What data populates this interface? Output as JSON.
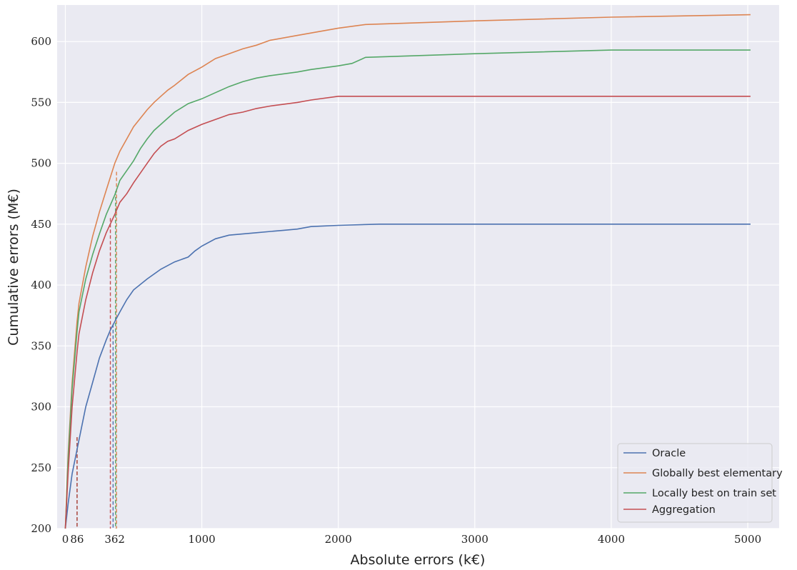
{
  "chart_data": {
    "type": "line",
    "title": "",
    "xlabel": "Absolute errors (k€)",
    "ylabel": "Cumulative errors (M€)",
    "xlim": [
      -60,
      5230
    ],
    "ylim": [
      200,
      630
    ],
    "x_ticks": [
      0,
      86,
      362,
      1000,
      2000,
      3000,
      4000,
      5000
    ],
    "y_ticks": [
      200,
      250,
      300,
      350,
      400,
      450,
      500,
      550,
      600
    ],
    "grid": true,
    "legend": "bottom-right",
    "series": [
      {
        "name": "Oracle",
        "color": "#4c72b0",
        "x": [
          0,
          20,
          50,
          86,
          150,
          200,
          250,
          300,
          330,
          362,
          400,
          450,
          500,
          600,
          700,
          800,
          900,
          950,
          1000,
          1100,
          1200,
          1400,
          1600,
          1700,
          1800,
          2000,
          2300,
          3000,
          4000,
          5020
        ],
        "y": [
          200,
          220,
          245,
          265,
          300,
          320,
          340,
          355,
          363,
          370,
          378,
          388,
          396,
          405,
          413,
          419,
          423,
          428,
          432,
          438,
          441,
          443,
          445,
          446,
          448,
          449,
          450,
          450,
          450,
          450
        ],
        "marker_x": 350,
        "marker_y": 368
      },
      {
        "name": "Globally best elementary",
        "color": "#dd8452",
        "x": [
          0,
          20,
          50,
          86,
          100,
          150,
          200,
          250,
          300,
          362,
          400,
          450,
          500,
          550,
          600,
          650,
          700,
          750,
          800,
          900,
          1000,
          1100,
          1200,
          1300,
          1400,
          1500,
          1700,
          1800,
          2000,
          2200,
          3000,
          4000,
          5020
        ],
        "y": [
          200,
          260,
          320,
          370,
          385,
          415,
          440,
          460,
          478,
          500,
          510,
          520,
          530,
          537,
          544,
          550,
          555,
          560,
          564,
          573,
          579,
          586,
          590,
          594,
          597,
          601,
          605,
          607,
          611,
          614,
          617,
          620,
          622
        ],
        "marker_x": 375,
        "marker_y": 493
      },
      {
        "name": "Locally best on train set",
        "color": "#55a868",
        "x": [
          0,
          20,
          50,
          86,
          100,
          150,
          200,
          250,
          300,
          362,
          400,
          450,
          500,
          550,
          600,
          650,
          700,
          750,
          800,
          900,
          1000,
          1100,
          1200,
          1300,
          1400,
          1500,
          1700,
          1800,
          2000,
          2100,
          2200,
          3000,
          4000,
          5020
        ],
        "y": [
          200,
          255,
          315,
          362,
          378,
          405,
          425,
          442,
          458,
          474,
          486,
          494,
          502,
          512,
          520,
          527,
          532,
          537,
          542,
          549,
          553,
          558,
          563,
          567,
          570,
          572,
          575,
          577,
          580,
          582,
          587,
          590,
          593,
          593
        ],
        "marker_x": 368,
        "marker_y": 477
      },
      {
        "name": "Aggregation",
        "color": "#c44e52",
        "x": [
          0,
          20,
          50,
          86,
          100,
          150,
          200,
          250,
          300,
          362,
          400,
          450,
          500,
          550,
          600,
          650,
          700,
          750,
          800,
          900,
          1000,
          1100,
          1200,
          1300,
          1400,
          1500,
          1700,
          1800,
          2000,
          2200,
          3000,
          4000,
          5020
        ],
        "y": [
          200,
          245,
          300,
          345,
          360,
          388,
          410,
          428,
          443,
          458,
          468,
          475,
          484,
          492,
          500,
          508,
          514,
          518,
          520,
          527,
          532,
          536,
          540,
          542,
          545,
          547,
          550,
          552,
          555,
          555,
          555,
          555,
          555
        ],
        "marker_x": 330,
        "marker_y": 455
      }
    ]
  }
}
